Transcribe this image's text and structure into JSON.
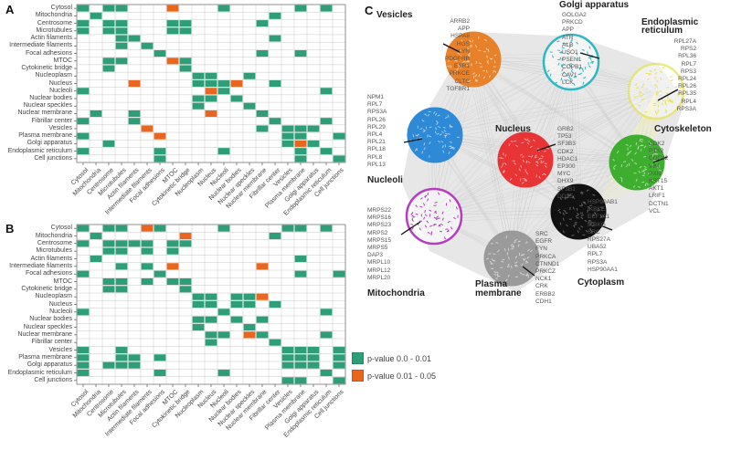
{
  "panels": {
    "a": "A",
    "b": "B",
    "c": "C"
  },
  "colors": {
    "sig_strong": "#2e9e78",
    "sig_weak": "#e8661d",
    "grid": "#c9c9c9",
    "border": "#777777"
  },
  "legend": [
    {
      "label": "p-value 0.0 - 0.01",
      "color": "#2e9e78"
    },
    {
      "label": "p-value 0.01 - 0.05",
      "color": "#e8661d"
    }
  ],
  "chart_data": [
    {
      "type": "heatmap",
      "title": "A",
      "categories": [
        "Cytosol",
        "Mitochondria",
        "Centrosome",
        "Microtubules",
        "Actin filaments",
        "Intermediate filaments",
        "Focal adhesions",
        "MTOC",
        "Cytokinetic bridge",
        "Nucleoplasm",
        "Nucleus",
        "Nucleoli",
        "Nuclear bodies",
        "Nuclear speckles",
        "Nuclear membrane",
        "Fibrillar center",
        "Vesicles",
        "Plasma membrane",
        "Golgi apparatus",
        "Endoplasmic reticulum",
        "Cell junctions"
      ],
      "value_legend": {
        "0": "not significant",
        "1": "p-value 0.0 - 0.01",
        "2": "p-value 0.01 - 0.05"
      },
      "matrix": [
        [
          1,
          0,
          1,
          1,
          0,
          0,
          0,
          2,
          0,
          0,
          0,
          1,
          0,
          0,
          0,
          0,
          0,
          1,
          0,
          1,
          0
        ],
        [
          0,
          1,
          0,
          0,
          0,
          0,
          0,
          0,
          0,
          0,
          0,
          0,
          0,
          0,
          0,
          1,
          0,
          0,
          0,
          0,
          0
        ],
        [
          1,
          0,
          1,
          1,
          0,
          0,
          0,
          1,
          1,
          0,
          0,
          0,
          0,
          0,
          1,
          0,
          0,
          0,
          0,
          0,
          0
        ],
        [
          1,
          0,
          1,
          1,
          0,
          0,
          0,
          1,
          1,
          0,
          0,
          0,
          0,
          0,
          0,
          0,
          0,
          0,
          0,
          0,
          0
        ],
        [
          0,
          0,
          0,
          1,
          1,
          0,
          0,
          0,
          0,
          0,
          0,
          0,
          0,
          0,
          0,
          1,
          0,
          0,
          0,
          0,
          0
        ],
        [
          0,
          0,
          0,
          1,
          0,
          1,
          0,
          0,
          0,
          0,
          0,
          0,
          0,
          0,
          0,
          0,
          0,
          0,
          0,
          0,
          0
        ],
        [
          0,
          0,
          0,
          0,
          0,
          0,
          1,
          0,
          0,
          0,
          0,
          0,
          0,
          0,
          1,
          0,
          0,
          1,
          0,
          0,
          0
        ],
        [
          0,
          0,
          1,
          1,
          0,
          0,
          0,
          2,
          1,
          0,
          0,
          0,
          0,
          0,
          0,
          0,
          0,
          0,
          0,
          0,
          0
        ],
        [
          0,
          0,
          1,
          0,
          0,
          0,
          0,
          0,
          1,
          0,
          0,
          0,
          0,
          0,
          0,
          0,
          0,
          0,
          0,
          0,
          0
        ],
        [
          0,
          0,
          0,
          0,
          0,
          0,
          0,
          0,
          0,
          1,
          1,
          0,
          0,
          1,
          0,
          0,
          0,
          0,
          0,
          0,
          0
        ],
        [
          0,
          0,
          0,
          0,
          2,
          0,
          0,
          0,
          0,
          1,
          1,
          1,
          2,
          0,
          0,
          1,
          0,
          0,
          0,
          0,
          0
        ],
        [
          1,
          0,
          0,
          0,
          0,
          0,
          0,
          0,
          0,
          0,
          2,
          1,
          0,
          0,
          0,
          0,
          0,
          0,
          0,
          1,
          0
        ],
        [
          0,
          0,
          0,
          0,
          0,
          0,
          0,
          0,
          0,
          1,
          1,
          0,
          1,
          0,
          0,
          0,
          0,
          0,
          0,
          0,
          0
        ],
        [
          0,
          0,
          0,
          0,
          0,
          0,
          0,
          0,
          0,
          1,
          0,
          0,
          0,
          1,
          0,
          0,
          0,
          0,
          0,
          0,
          0
        ],
        [
          0,
          1,
          0,
          0,
          1,
          0,
          0,
          0,
          0,
          0,
          2,
          0,
          0,
          0,
          1,
          0,
          0,
          0,
          0,
          0,
          0
        ],
        [
          1,
          0,
          0,
          0,
          1,
          0,
          0,
          0,
          0,
          0,
          0,
          0,
          0,
          0,
          0,
          1,
          0,
          0,
          0,
          1,
          0
        ],
        [
          0,
          0,
          0,
          0,
          0,
          2,
          0,
          0,
          0,
          0,
          0,
          0,
          0,
          0,
          1,
          0,
          1,
          1,
          1,
          0,
          0
        ],
        [
          1,
          0,
          0,
          0,
          0,
          0,
          2,
          0,
          0,
          0,
          0,
          0,
          0,
          0,
          0,
          0,
          1,
          1,
          0,
          0,
          1
        ],
        [
          0,
          0,
          1,
          0,
          0,
          0,
          0,
          0,
          0,
          0,
          0,
          0,
          0,
          0,
          0,
          0,
          1,
          2,
          1,
          0,
          0
        ],
        [
          1,
          0,
          0,
          0,
          0,
          0,
          1,
          0,
          0,
          0,
          0,
          1,
          0,
          0,
          0,
          0,
          0,
          1,
          0,
          1,
          0
        ],
        [
          0,
          0,
          0,
          0,
          0,
          0,
          1,
          0,
          0,
          0,
          0,
          0,
          0,
          0,
          0,
          0,
          0,
          1,
          0,
          0,
          1
        ]
      ]
    },
    {
      "type": "heatmap",
      "title": "B",
      "categories": [
        "Cytosol",
        "Mitochondria",
        "Centrosome",
        "Microtubules",
        "Actin filaments",
        "Intermediate filaments",
        "Focal adhesions",
        "MTOC",
        "Cytokinetic bridge",
        "Nucleoplasm",
        "Nucleus",
        "Nucleoli",
        "Nuclear bodies",
        "Nuclear speckles",
        "Nuclear membrane",
        "Fibrillar center",
        "Vesicles",
        "Plasma membrane",
        "Golgi apparatus",
        "Endoplasmic reticulum",
        "Cell junctions"
      ],
      "value_legend": {
        "0": "not significant",
        "1": "p-value 0.0 - 0.01",
        "2": "p-value 0.01 - 0.05"
      },
      "matrix": [
        [
          1,
          0,
          1,
          1,
          0,
          2,
          1,
          0,
          0,
          0,
          0,
          1,
          0,
          0,
          0,
          0,
          1,
          1,
          0,
          1,
          0
        ],
        [
          0,
          1,
          0,
          0,
          0,
          0,
          0,
          0,
          2,
          0,
          0,
          0,
          0,
          0,
          0,
          1,
          0,
          0,
          0,
          0,
          0
        ],
        [
          1,
          0,
          1,
          1,
          1,
          1,
          0,
          1,
          1,
          0,
          0,
          0,
          0,
          0,
          0,
          0,
          0,
          0,
          0,
          0,
          0
        ],
        [
          0,
          0,
          1,
          1,
          0,
          1,
          0,
          1,
          0,
          0,
          0,
          0,
          0,
          0,
          0,
          0,
          0,
          0,
          0,
          0,
          0
        ],
        [
          0,
          1,
          0,
          0,
          0,
          0,
          0,
          0,
          0,
          0,
          0,
          0,
          0,
          0,
          0,
          0,
          0,
          1,
          0,
          0,
          0
        ],
        [
          0,
          0,
          0,
          1,
          0,
          1,
          0,
          2,
          0,
          0,
          0,
          0,
          0,
          0,
          2,
          0,
          0,
          0,
          0,
          0,
          0
        ],
        [
          1,
          0,
          0,
          0,
          0,
          0,
          1,
          0,
          0,
          0,
          0,
          0,
          0,
          0,
          0,
          0,
          0,
          1,
          0,
          0,
          1
        ],
        [
          0,
          0,
          1,
          1,
          0,
          1,
          0,
          1,
          1,
          0,
          0,
          0,
          0,
          0,
          0,
          0,
          0,
          0,
          0,
          0,
          0
        ],
        [
          0,
          0,
          1,
          1,
          0,
          0,
          0,
          0,
          1,
          0,
          0,
          0,
          0,
          0,
          0,
          0,
          0,
          0,
          0,
          0,
          0
        ],
        [
          0,
          0,
          0,
          0,
          0,
          0,
          0,
          0,
          0,
          1,
          1,
          0,
          1,
          1,
          2,
          0,
          0,
          0,
          0,
          0,
          0
        ],
        [
          0,
          0,
          0,
          0,
          0,
          0,
          0,
          0,
          0,
          1,
          1,
          0,
          1,
          1,
          0,
          1,
          0,
          0,
          0,
          0,
          0
        ],
        [
          1,
          0,
          0,
          0,
          0,
          0,
          0,
          0,
          0,
          0,
          0,
          1,
          0,
          0,
          0,
          0,
          0,
          0,
          0,
          1,
          0
        ],
        [
          0,
          0,
          0,
          0,
          0,
          0,
          0,
          0,
          0,
          1,
          1,
          0,
          1,
          0,
          1,
          0,
          0,
          0,
          0,
          0,
          0
        ],
        [
          0,
          0,
          0,
          0,
          0,
          0,
          0,
          0,
          0,
          1,
          0,
          0,
          0,
          1,
          0,
          0,
          0,
          0,
          0,
          0,
          0
        ],
        [
          0,
          0,
          0,
          0,
          0,
          0,
          0,
          0,
          0,
          0,
          1,
          1,
          0,
          2,
          1,
          0,
          0,
          0,
          0,
          1,
          0
        ],
        [
          0,
          0,
          0,
          0,
          0,
          0,
          0,
          0,
          0,
          0,
          1,
          0,
          0,
          0,
          0,
          1,
          0,
          0,
          0,
          0,
          0
        ],
        [
          1,
          0,
          0,
          1,
          0,
          0,
          0,
          0,
          0,
          0,
          0,
          0,
          0,
          0,
          0,
          0,
          1,
          1,
          1,
          0,
          1
        ],
        [
          1,
          0,
          0,
          1,
          1,
          0,
          1,
          0,
          0,
          0,
          0,
          0,
          0,
          0,
          0,
          0,
          1,
          1,
          1,
          0,
          1
        ],
        [
          1,
          0,
          1,
          1,
          1,
          0,
          0,
          0,
          0,
          0,
          0,
          0,
          0,
          0,
          0,
          0,
          1,
          1,
          1,
          0,
          1
        ],
        [
          1,
          0,
          0,
          0,
          0,
          0,
          1,
          0,
          0,
          0,
          0,
          1,
          0,
          0,
          0,
          0,
          0,
          0,
          0,
          1,
          0
        ],
        [
          0,
          0,
          0,
          0,
          0,
          0,
          0,
          0,
          0,
          0,
          0,
          0,
          0,
          0,
          0,
          0,
          1,
          1,
          0,
          0,
          1
        ]
      ]
    }
  ],
  "network": {
    "clusters": [
      {
        "id": "vesicles",
        "name": "Vesicles",
        "color": "#e8822a",
        "genes": [
          "ARRB2",
          "APP",
          "HSPA8",
          "HGS",
          "LYN",
          "PDGFRB",
          "ESR1",
          "PRKCE",
          "CLTC",
          "TGFBR1"
        ]
      },
      {
        "id": "golgi",
        "name": "Golgi apparatus",
        "color": "#2fb8c4",
        "genes": [
          "GOLGA2",
          "PRKCD",
          "APP",
          "ATR",
          "ALB",
          "USO1",
          "PSEN1",
          "COPB1",
          "CAV1",
          "LCK"
        ]
      },
      {
        "id": "er",
        "name": "Endoplasmic reticulum",
        "color": "#e8e25a",
        "genes": [
          "RPL27A",
          "RPS2",
          "RPL36",
          "RPL7",
          "RPS3",
          "RPL24",
          "RPL26",
          "RPL35",
          "RPL4",
          "RPS3A"
        ]
      },
      {
        "id": "nucleoli",
        "name": "Nucleoli",
        "color": "#2e8ad6",
        "genes": [
          "NPM1",
          "RPL7",
          "RPS3A",
          "RPL26",
          "RPL29",
          "RPL4",
          "RPL21",
          "RPL18",
          "RPL8",
          "RPL13"
        ]
      },
      {
        "id": "nucleus",
        "name": "Nucleus",
        "color": "#e83434",
        "genes": [
          "GRB2",
          "TP53",
          "SF3B3",
          "CDK2",
          "HDAC1",
          "EP300",
          "MYC",
          "DHX9",
          "SF3B1",
          "DDX5"
        ]
      },
      {
        "id": "cytoskeleton",
        "name": "Cytoskeleton",
        "color": "#3eae2e",
        "genes": [
          "CDK2",
          "PTK2",
          "CDC42",
          "VIM",
          "PXN",
          "KRT15",
          "AKT1",
          "LRIF1",
          "DCTN1",
          "VCL"
        ]
      },
      {
        "id": "cytoplasm",
        "name": "Cytoplasm",
        "color": "#111111",
        "genes": [
          "HSP90AB1",
          "IKBKE",
          "EEF1A1",
          "IKBKG",
          "SRC",
          "RPS27A",
          "UBA52",
          "RPL7",
          "RPS3A",
          "HSP90AA1"
        ]
      },
      {
        "id": "mitochondria",
        "name": "Mitochondria",
        "color": "#b63cc2",
        "genes": [
          "MRPS22",
          "MRPS16",
          "MRPS23",
          "MRPS2",
          "MRPS15",
          "MRPS5",
          "DAP3",
          "MRPL10",
          "MRPL12",
          "MRPL20"
        ]
      },
      {
        "id": "plasma",
        "name": "Plasma membrane",
        "color": "#9a9a9a",
        "genes": [
          "SRC",
          "EGFR",
          "FYN",
          "PRKCA",
          "CTNND1",
          "PRKCZ",
          "NCK1",
          "CRK",
          "ERBB2",
          "CDH1"
        ]
      }
    ]
  }
}
